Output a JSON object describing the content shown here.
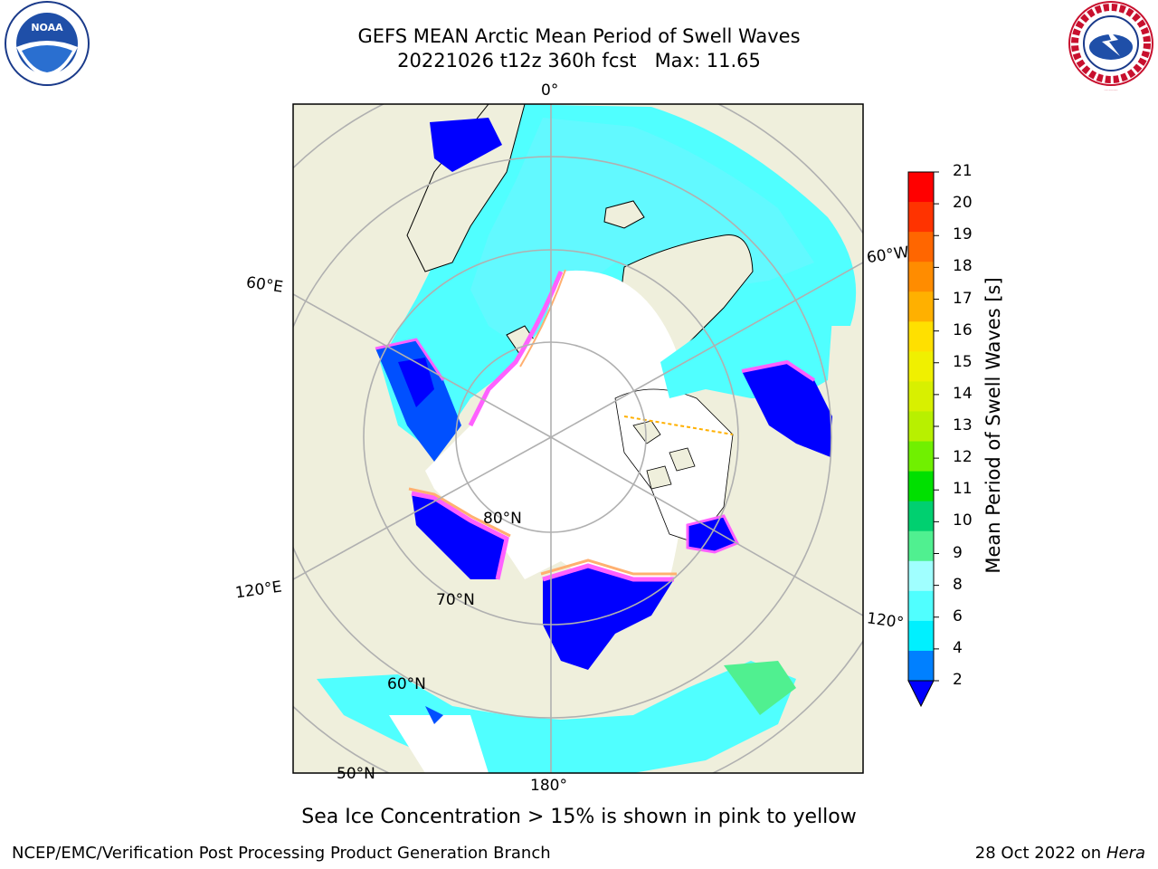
{
  "title_line1": "GEFS MEAN Arctic Mean Period of Swell Waves",
  "title_line2": "20221026 t12z 360h fcst   Max: 11.65",
  "caption": "Sea Ice Concentration > 15% is shown in pink to yellow",
  "footer_left": "NCEP/EMC/Verification Post Processing Product Generation Branch",
  "footer_date": "28 Oct 2022 on ",
  "footer_host": "Hera",
  "logos": {
    "left": "NOAA",
    "right": "NATIONAL WEATHER SERVICE"
  },
  "map_labels": {
    "lon_0": "0°",
    "lon_60e": "60°E",
    "lon_120e": "120°E",
    "lon_180": "180°",
    "lon_60w": "60°W",
    "lon_120w": "120°",
    "lat_80": "80°N",
    "lat_70": "70°N",
    "lat_60": "60°N",
    "lat_50": "50°N"
  },
  "colorbar": {
    "label": "Mean Period of Swell Waves [s]",
    "ticks": [
      "21",
      "20",
      "19",
      "18",
      "17",
      "16",
      "15",
      "14",
      "13",
      "12",
      "11",
      "10",
      "9",
      "8",
      "6",
      "4",
      "2"
    ],
    "colors": [
      "#ff0000",
      "#ff3300",
      "#ff6600",
      "#ff8c00",
      "#ffb000",
      "#ffe000",
      "#f0f000",
      "#d8f000",
      "#b8f000",
      "#70f000",
      "#00e000",
      "#00d070",
      "#50f090",
      "#a0ffff",
      "#50ffff",
      "#00f0ff",
      "#0080ff"
    ],
    "extend_color": "#0000ff"
  },
  "colors": {
    "land": "#efefdc",
    "ice": "#ffffff",
    "grid": "#b0b0b0"
  }
}
